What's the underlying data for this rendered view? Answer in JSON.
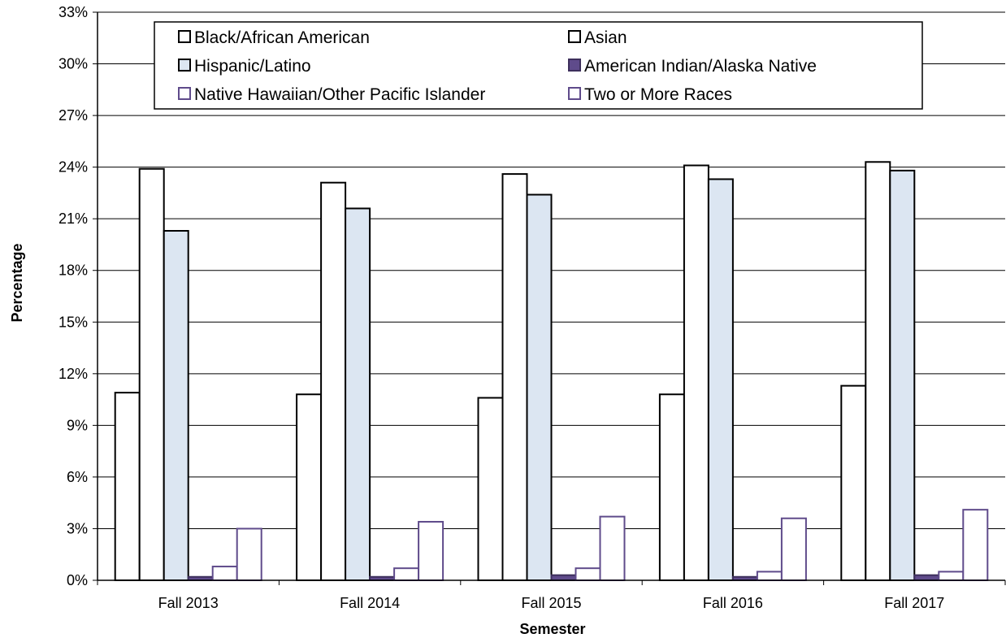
{
  "chart_data": {
    "type": "bar",
    "title": "",
    "xlabel": "Semester",
    "ylabel": "Percentage",
    "ylim": [
      0,
      33
    ],
    "yticks": [
      0,
      3,
      6,
      9,
      12,
      15,
      18,
      21,
      24,
      27,
      30,
      33
    ],
    "ytick_suffix": "%",
    "grid": "horizontal",
    "legend_position": "top",
    "categories": [
      "Fall 2013",
      "Fall 2014",
      "Fall 2015",
      "Fall 2016",
      "Fall 2017"
    ],
    "series": [
      {
        "name": "Black/African American",
        "values": [
          10.9,
          10.8,
          10.6,
          10.8,
          11.3
        ],
        "fill": "#ffffff",
        "stroke": "#000000"
      },
      {
        "name": "Asian",
        "values": [
          23.9,
          23.1,
          23.6,
          24.1,
          24.3
        ],
        "fill": "#ffffff",
        "stroke": "#000000"
      },
      {
        "name": "Hispanic/Latino",
        "values": [
          20.3,
          21.6,
          22.4,
          23.3,
          23.8
        ],
        "fill": "#dce6f2",
        "stroke": "#000000"
      },
      {
        "name": "American Indian/Alaska Native",
        "values": [
          0.2,
          0.2,
          0.3,
          0.2,
          0.3
        ],
        "fill": "#5f4b8b",
        "stroke": "#3d2f5c"
      },
      {
        "name": "Native Hawaiian/Other Pacific Islander",
        "values": [
          0.8,
          0.7,
          0.7,
          0.5,
          0.5
        ],
        "fill": "#ffffff",
        "stroke": "#5f4b8b"
      },
      {
        "name": "Two or More Races",
        "values": [
          3.0,
          3.4,
          3.7,
          3.6,
          4.1
        ],
        "fill": "#ffffff",
        "stroke": "#5f4b8b"
      }
    ]
  }
}
